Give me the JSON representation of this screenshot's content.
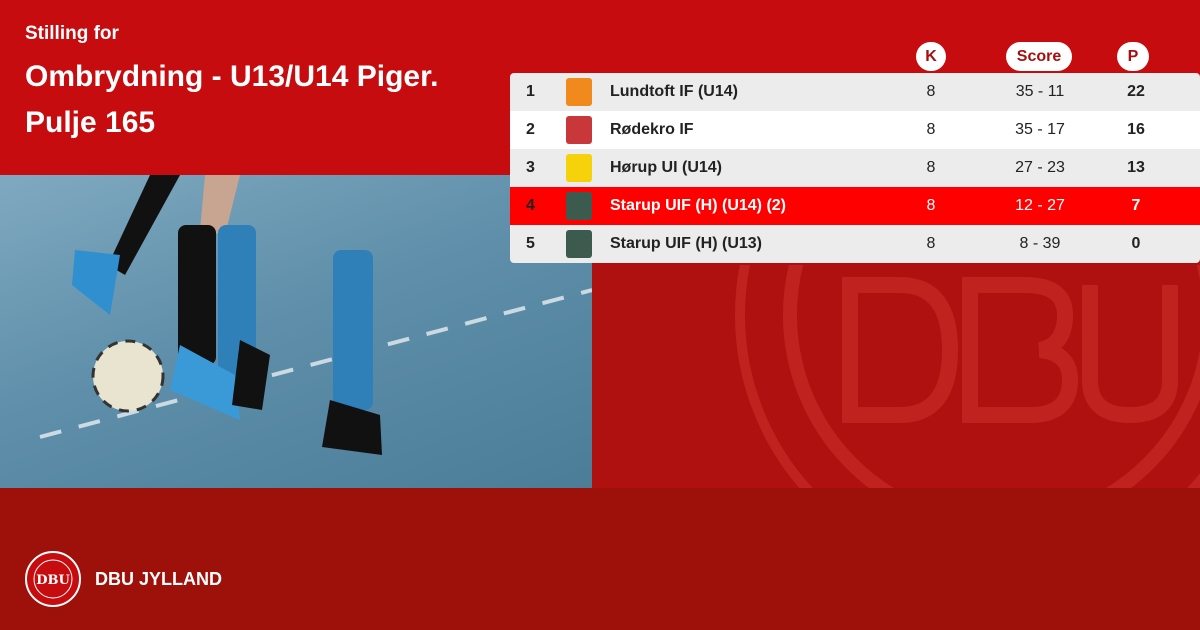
{
  "header": {
    "subtitle": "Stilling for",
    "title": "Ombrydning - U13/U14 Piger. Pulje 165"
  },
  "columns": {
    "k": "K",
    "score": "Score",
    "p": "P"
  },
  "rows": [
    {
      "rank": "1",
      "team": "Lundtoft IF (U14)",
      "k": "8",
      "score": "35 - 11",
      "p": "22",
      "logo_color": "#f08a1c",
      "highlight": false
    },
    {
      "rank": "2",
      "team": "Rødekro IF",
      "k": "8",
      "score": "35 - 17",
      "p": "16",
      "logo_color": "#c8383a",
      "highlight": false
    },
    {
      "rank": "3",
      "team": "Hørup UI (U14)",
      "k": "8",
      "score": "27 - 23",
      "p": "13",
      "logo_color": "#f5d20a",
      "highlight": false
    },
    {
      "rank": "4",
      "team": "Starup UIF (H) (U14) (2)",
      "k": "8",
      "score": "12 - 27",
      "p": "7",
      "logo_color": "#3d5a4e",
      "highlight": true
    },
    {
      "rank": "5",
      "team": "Starup UIF (H) (U13)",
      "k": "8",
      "score": "8 - 39",
      "p": "0",
      "logo_color": "#3d5a4e",
      "highlight": false
    }
  ],
  "footer": {
    "brand": "DBU JYLLAND",
    "logo_text": "DBU"
  },
  "colors": {
    "top": "#c70c0f",
    "bottom": "#9e100a",
    "highlight": "#ff0000"
  }
}
